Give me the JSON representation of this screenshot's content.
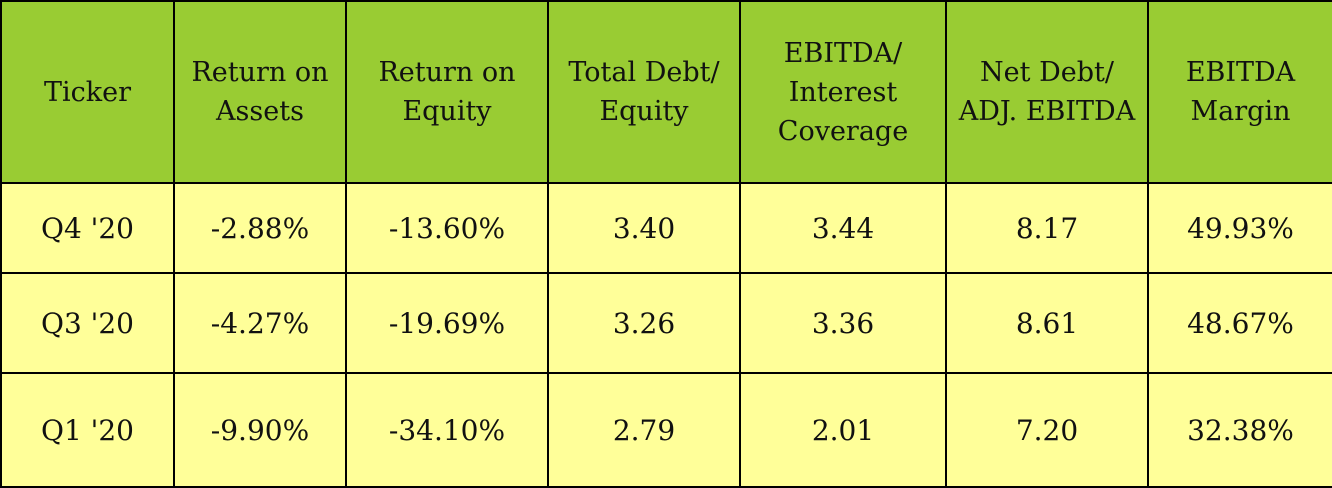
{
  "table": {
    "headers": [
      "Ticker",
      "Return on\nAssets",
      "Return on\nEquity",
      "Total Debt/\nEquity",
      "EBITDA/\nInterest\nCoverage",
      "Net Debt/\nADJ. EBITDA",
      "EBITDA\nMargin"
    ],
    "rows": [
      [
        "Q4 '20",
        "-2.88%",
        "-13.60%",
        "3.40",
        "3.44",
        "8.17",
        "49.93%"
      ],
      [
        "Q3 '20",
        "-4.27%",
        "-19.69%",
        "3.26",
        "3.36",
        "8.61",
        "48.67%"
      ],
      [
        "Q1 '20",
        "-9.90%",
        "-34.10%",
        "2.79",
        "2.01",
        "7.20",
        "32.38%"
      ]
    ]
  },
  "colors": {
    "header_bg": "#99cc33",
    "row_bg": "#ffff99",
    "border": "#000000"
  }
}
